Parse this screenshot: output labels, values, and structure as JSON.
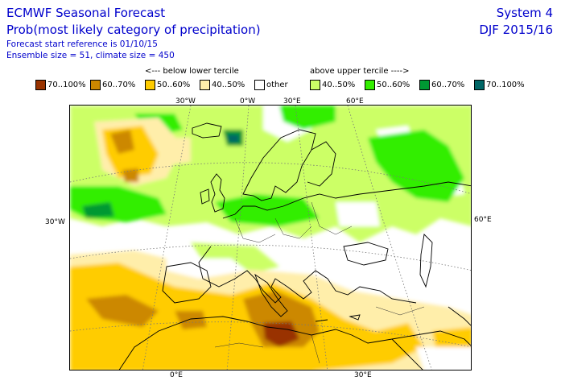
{
  "header": {
    "title": "ECMWF Seasonal Forecast",
    "subtitle": "Prob(most likely category of precipitation)",
    "forecast_ref": "Forecast start reference is 01/10/15",
    "ensemble": "Ensemble size = 51, climate size = 450",
    "system": "System 4",
    "season": "DJF 2015/16"
  },
  "legend": {
    "below_label": "<--- below lower tercile",
    "above_label": "above upper tercile ---->",
    "items": [
      {
        "label": "70..100%",
        "color": "#993300"
      },
      {
        "label": "60..70%",
        "color": "#cc8800"
      },
      {
        "label": "50..60%",
        "color": "#ffcc00"
      },
      {
        "label": "40..50%",
        "color": "#ffeeaa"
      },
      {
        "label": "other",
        "color": "#ffffff"
      },
      {
        "label": "40..50%",
        "color": "#ccff66"
      },
      {
        "label": "50..60%",
        "color": "#33ee00"
      },
      {
        "label": "60..70%",
        "color": "#009933"
      },
      {
        "label": "70..100%",
        "color": "#006666"
      }
    ]
  },
  "axes": {
    "top": [
      "30°W",
      "0°W",
      "30°E",
      "60°E"
    ],
    "left": [
      "30°W"
    ],
    "right": [
      "60°E"
    ],
    "bottom": [
      "0°E",
      "30°E"
    ]
  }
}
